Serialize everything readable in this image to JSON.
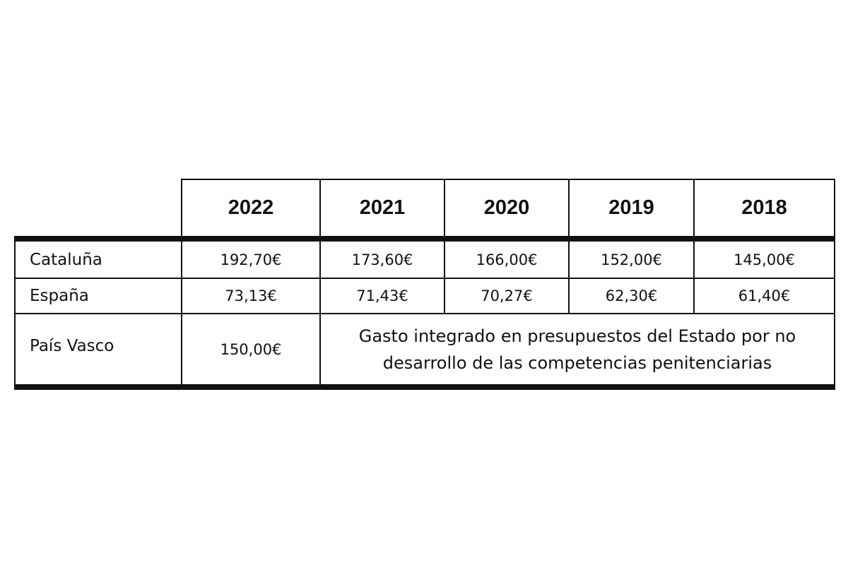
{
  "table": {
    "corner": "",
    "headers": [
      "2022",
      "2021",
      "2020",
      "2019",
      "2018"
    ],
    "rows": [
      {
        "label": "Cataluña",
        "values": [
          "192,70€",
          "173,60€",
          "166,00€",
          "152,00€",
          "145,00€"
        ]
      },
      {
        "label": "España",
        "values": [
          "73,13€",
          "71,43€",
          "70,27€",
          "62,30€",
          "61,40€"
        ]
      },
      {
        "label": "País Vasco",
        "values": [
          "150,00€"
        ],
        "note": "Gasto integrado en presupuestos del Estado por no desarrollo de las competencias penitenciarias"
      }
    ]
  }
}
